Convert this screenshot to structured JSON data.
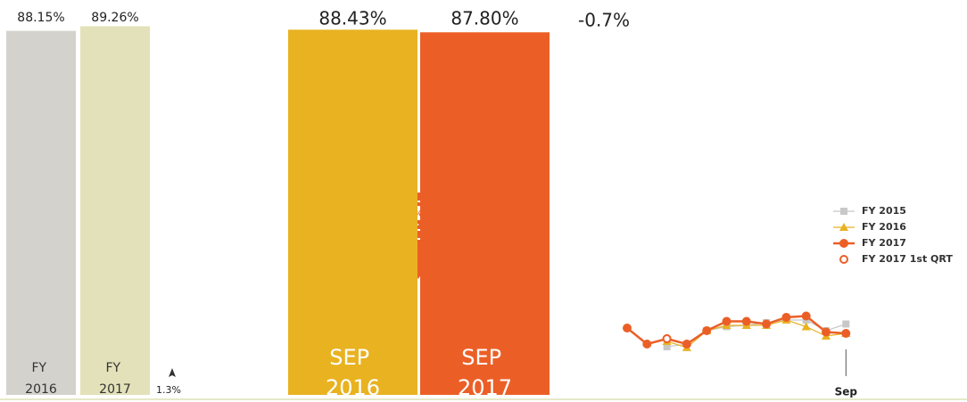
{
  "chart_data": [
    {
      "type": "bar",
      "categories": [
        "FY 2016",
        "FY 2017"
      ],
      "values": [
        88.15,
        89.26
      ],
      "value_labels": [
        "88.15%",
        "89.26%"
      ],
      "colors": [
        "#d3d2cd",
        "#e2e1b9"
      ],
      "ylim": [
        0,
        88.5
      ],
      "annotation": "1.3%"
    },
    {
      "type": "bar",
      "categories": [
        "SEP 2016",
        "SEP 2017"
      ],
      "values": [
        88.43,
        87.8
      ],
      "value_labels": [
        "88.43%",
        "87.80%"
      ],
      "colors": [
        "#e8b221",
        "#eb5f27"
      ],
      "ylim": [
        0,
        88.5
      ],
      "annotation": "-0.7%"
    },
    {
      "type": "line",
      "categories": [
        null,
        null,
        null,
        null,
        null,
        null,
        null,
        null,
        null,
        null,
        null,
        "Sep"
      ],
      "ylim": [
        70,
        100
      ],
      "series": [
        {
          "name": "FY 2015",
          "color": "#c8c8c8",
          "marker": "square",
          "values": [
            null,
            null,
            78,
            79,
            84,
            85.5,
            86,
            87,
            88,
            88,
            84,
            86.5
          ]
        },
        {
          "name": "FY 2016",
          "color": "#e8b221",
          "marker": "triangle",
          "values": [
            null,
            null,
            80,
            77.7,
            84,
            86,
            86,
            86,
            88,
            85.5,
            82,
            83
          ]
        },
        {
          "name": "FY 2017",
          "color": "#eb5f27",
          "marker": "circle",
          "values": [
            85,
            79,
            81,
            79,
            84,
            87.5,
            87.5,
            86.5,
            89,
            89.5,
            83.5,
            83
          ]
        },
        {
          "name": "FY 2017 1st QRT",
          "color": "#eb5f27",
          "marker": "open",
          "values": [
            null,
            null,
            81,
            null,
            null,
            null,
            null,
            null,
            null,
            null,
            null,
            null
          ]
        }
      ]
    }
  ]
}
